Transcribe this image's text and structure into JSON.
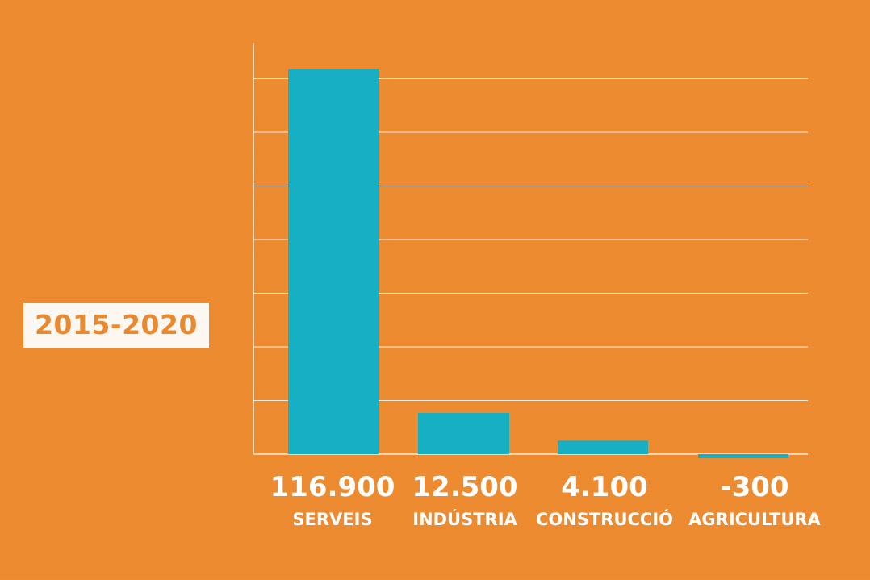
{
  "period_label": "2015-2020",
  "colors": {
    "background": "#ED8A2E",
    "bar": "#17AFC4",
    "grid": "#FFFFFF",
    "text": "#FFFFFF",
    "badge_background": "#FCF7F0",
    "badge_text": "#EA8A30"
  },
  "chart_data": {
    "type": "bar",
    "categories": [
      "SERVEIS",
      "INDÚSTRIA",
      "CONSTRUCCIÓ",
      "AGRICULTURA"
    ],
    "values": [
      116900,
      12500,
      4100,
      -300
    ],
    "value_labels": [
      "116.900",
      "12.500",
      "4.100",
      "-300"
    ],
    "title": "",
    "xlabel": "",
    "ylabel": "",
    "ylim": [
      0,
      120000
    ],
    "grid": true,
    "legend": "none"
  }
}
